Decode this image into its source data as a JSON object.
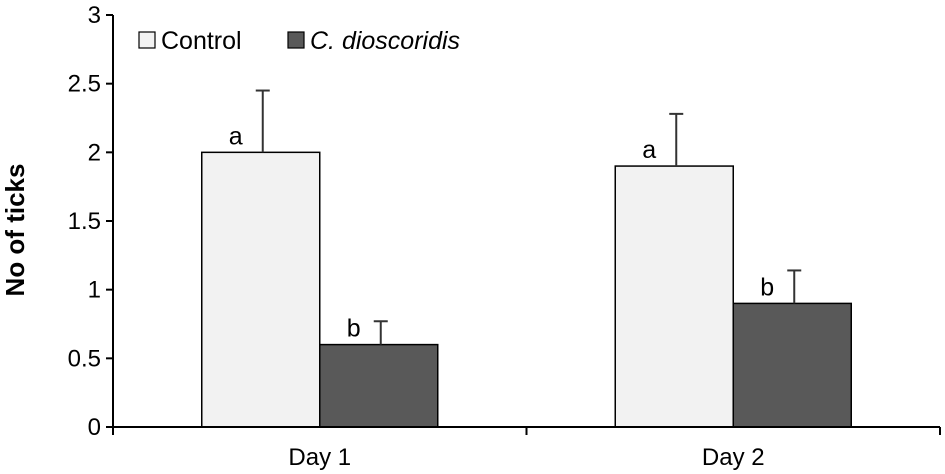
{
  "colors": {
    "control": "#f2f2f2",
    "treatment": "#595959",
    "axis": "#000000"
  },
  "chart_data": {
    "type": "bar",
    "ylabel": "No of ticks",
    "ylim": [
      0,
      3
    ],
    "yticks": [
      "0",
      "0.5",
      "1",
      "1.5",
      "2",
      "2.5",
      "3"
    ],
    "categories": [
      "Day 1",
      "Day 2"
    ],
    "legend_placement": "top-left",
    "series": [
      {
        "name": "Control",
        "italic": false,
        "values": [
          2.0,
          1.9
        ],
        "errors": [
          0.45,
          0.38
        ],
        "letters": [
          "a",
          "a"
        ]
      },
      {
        "name": "C. dioscoridis",
        "italic": true,
        "values": [
          0.6,
          0.9
        ],
        "errors": [
          0.17,
          0.24
        ],
        "letters": [
          "b",
          "b"
        ]
      }
    ]
  }
}
